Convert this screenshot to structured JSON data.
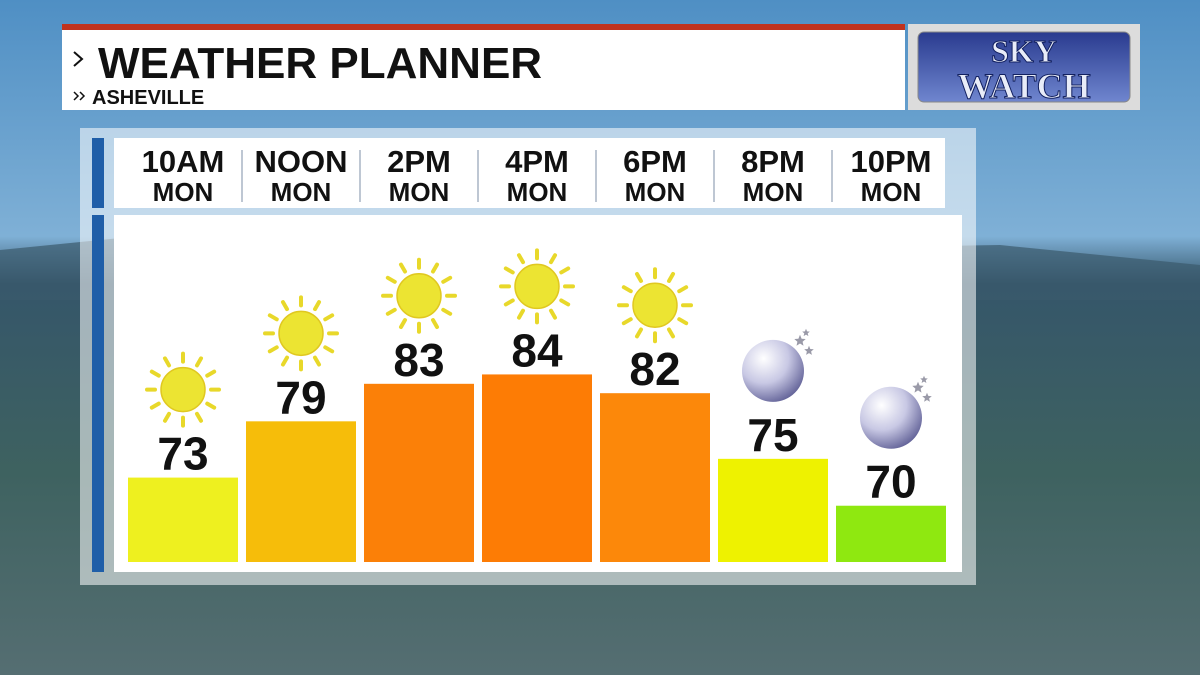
{
  "chart_data": {
    "type": "bar",
    "title": "WEATHER PLANNER",
    "subtitle": "ASHEVILLE",
    "categories": [
      "10AM",
      "NOON",
      "2PM",
      "4PM",
      "6PM",
      "8PM",
      "10PM"
    ],
    "sublabels": [
      "MON",
      "MON",
      "MON",
      "MON",
      "MON",
      "MON",
      "MON"
    ],
    "values": [
      73,
      79,
      83,
      84,
      82,
      75,
      70
    ],
    "colors": [
      "#eef01f",
      "#f6bd0a",
      "#fb8008",
      "#fd7c05",
      "#fc880a",
      "#eef200",
      "#8fe810"
    ],
    "icons": [
      "sun",
      "sun",
      "sun",
      "sun",
      "sun",
      "moon",
      "moon"
    ],
    "ylim": [
      64,
      101
    ]
  },
  "logo": {
    "line1": "SKY",
    "line2": "WATCH"
  }
}
